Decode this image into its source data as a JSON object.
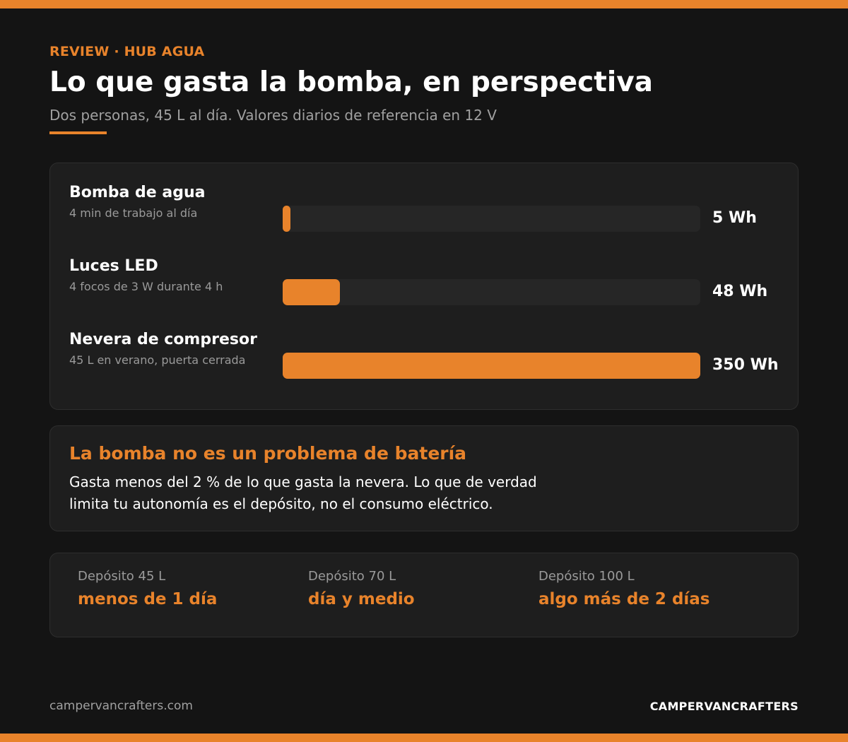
{
  "header": {
    "eyebrow": "REVIEW · HUB AGUA",
    "title": "Lo que gasta la bomba, en perspectiva",
    "subtitle": "Dos personas, 45 L al día. Valores diarios de referencia en 12 V"
  },
  "colors": {
    "accent": "#e8832b",
    "background": "#141414",
    "card": "#1e1e1e",
    "track": "#262626"
  },
  "chart_data": {
    "type": "bar",
    "orientation": "horizontal",
    "unit": "Wh",
    "xlim": [
      0,
      350
    ],
    "items": [
      {
        "name": "Bomba de agua",
        "description": "4 min de trabajo al día",
        "value": 5,
        "label": "5 Wh"
      },
      {
        "name": "Luces LED",
        "description": "4 focos de 3 W durante 4 h",
        "value": 48,
        "label": "48 Wh"
      },
      {
        "name": "Nevera de compresor",
        "description": "45 L en verano, puerta cerrada",
        "value": 350,
        "label": "350 Wh"
      }
    ]
  },
  "note": {
    "title": "La bomba no es un problema de batería",
    "body": "Gasta menos del 2 % de lo que gasta la nevera. Lo que de verdad limita tu autonomía es el depósito, no el consumo eléctrico."
  },
  "tanks": [
    {
      "label": "Depósito 45 L",
      "value": "menos de 1 día"
    },
    {
      "label": "Depósito 70 L",
      "value": "día y medio"
    },
    {
      "label": "Depósito 100 L",
      "value": "algo más de 2 días"
    }
  ],
  "footer": {
    "url": "campervancrafters.com",
    "brand": "CAMPERVANCRAFTERS"
  }
}
